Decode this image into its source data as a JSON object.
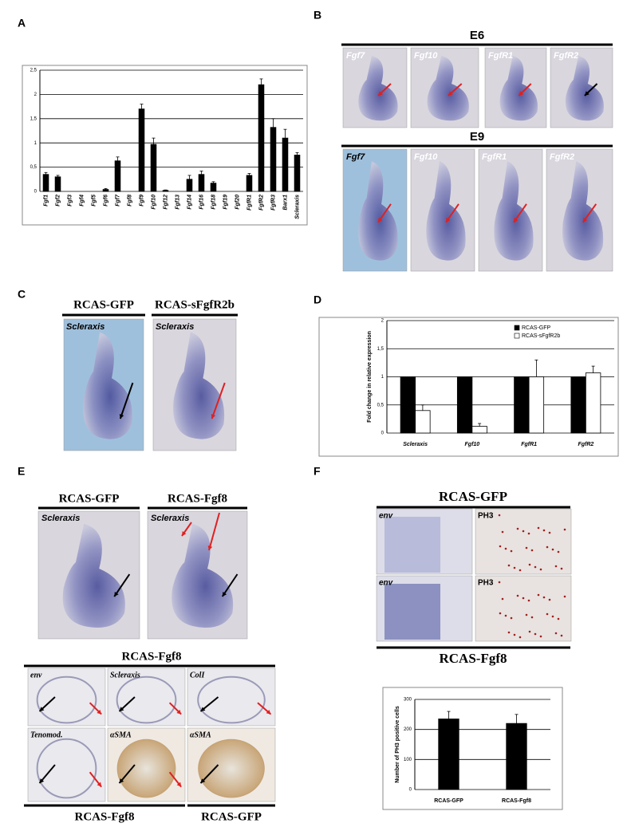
{
  "panel_letters": [
    "A",
    "B",
    "C",
    "D",
    "E",
    "F"
  ],
  "chart_data": [
    {
      "type": "bar",
      "categories": [
        "Fgf1",
        "Fgf2",
        "Fgf3",
        "Fgf4",
        "Fgf5",
        "Fgf6",
        "Fgf7",
        "Fgf8",
        "Fgf9",
        "Fgf10",
        "Fgf12",
        "Fgf13",
        "Fgf14",
        "Fgf16",
        "Fgf18",
        "Fgf19",
        "Fgf20",
        "FgfR1",
        "FgfR2",
        "FgfR3",
        "Barx1",
        "Scleraxis"
      ],
      "series": [
        {
          "color": "#000000",
          "values": [
            0.35,
            0.3,
            0,
            0,
            0,
            0.04,
            0.63,
            0,
            1.7,
            0.97,
            0.02,
            0,
            0.25,
            0.35,
            0.17,
            0,
            0,
            0.33,
            2.2,
            1.32,
            1.1,
            0.75
          ],
          "errors": [
            0.04,
            0.03,
            0,
            0,
            0,
            0.02,
            0.08,
            0,
            0.1,
            0.13,
            0.01,
            0,
            0.08,
            0.07,
            0.03,
            0,
            0,
            0.04,
            0.12,
            0.18,
            0.18,
            0.05
          ]
        }
      ],
      "ylim": [
        0,
        2.5
      ],
      "yticks": [
        0,
        {
          "value": 0.5,
          "label": "0,5"
        },
        1,
        {
          "value": 1.5,
          "label": "1,5"
        },
        2,
        {
          "value": 2.5,
          "label": "2,5"
        }
      ],
      "grid": true
    },
    {
      "type": "bar",
      "ylabel": "Fold change in relative expression",
      "categories": [
        "Scleraxis",
        "Fgf10",
        "FgfR1",
        "FgfR2"
      ],
      "series": [
        {
          "name": "RCAS-GFP",
          "color": "#000000",
          "values": [
            1,
            1,
            1,
            1
          ]
        },
        {
          "name": "RCAS-sFgfR2b",
          "color": "#ffffff",
          "values": [
            0.4,
            0.12,
            1,
            1.07
          ],
          "errors": [
            0.1,
            0.05,
            0.3,
            0.12
          ]
        }
      ],
      "ylim": [
        0,
        2
      ],
      "yticks": [
        0,
        {
          "value": 0.5,
          "label": "0,5"
        },
        1,
        {
          "value": 1.5,
          "label": "1,5"
        },
        2
      ],
      "grid": true,
      "legend": "top-right"
    },
    {
      "type": "bar",
      "ylabel": "Number of PH3 positive cells",
      "categories": [
        "RCAS-GFP",
        "RCAS-Fgf8"
      ],
      "series": [
        {
          "color": "#000000",
          "values": [
            235,
            220
          ],
          "errors": [
            25,
            30
          ]
        }
      ],
      "ylim": [
        0,
        300
      ],
      "yticks": [
        0,
        100,
        200,
        300
      ],
      "grid": true
    }
  ],
  "panel_b": {
    "rows": [
      {
        "title": "E6",
        "labels": [
          "Fgf7",
          "Fgf10",
          "FgfR1",
          "FgfR2"
        ]
      },
      {
        "title": "E9",
        "labels": [
          "Fgf7",
          "Fgf10",
          "FgfR1",
          "FgfR2"
        ]
      }
    ]
  },
  "panel_c": {
    "headers": [
      "RCAS-GFP",
      "RCAS-sFgfR2b"
    ],
    "labels": [
      "Scleraxis",
      "Scleraxis"
    ]
  },
  "panel_e": {
    "headers": [
      "RCAS-GFP",
      "RCAS-Fgf8"
    ],
    "labels": [
      "Scleraxis",
      "Scleraxis"
    ],
    "section_title": "RCAS-Fgf8",
    "tiles": [
      "env",
      "Scleraxis",
      "ColI",
      "Tenomod.",
      "αSMA",
      "αSMA"
    ],
    "footers": [
      "RCAS-Fgf8",
      "RCAS-GFP"
    ]
  },
  "panel_f": {
    "title": "RCAS-GFP",
    "tiles": [
      "env",
      "PH3",
      "env",
      "PH3"
    ],
    "footer": "RCAS-Fgf8"
  }
}
